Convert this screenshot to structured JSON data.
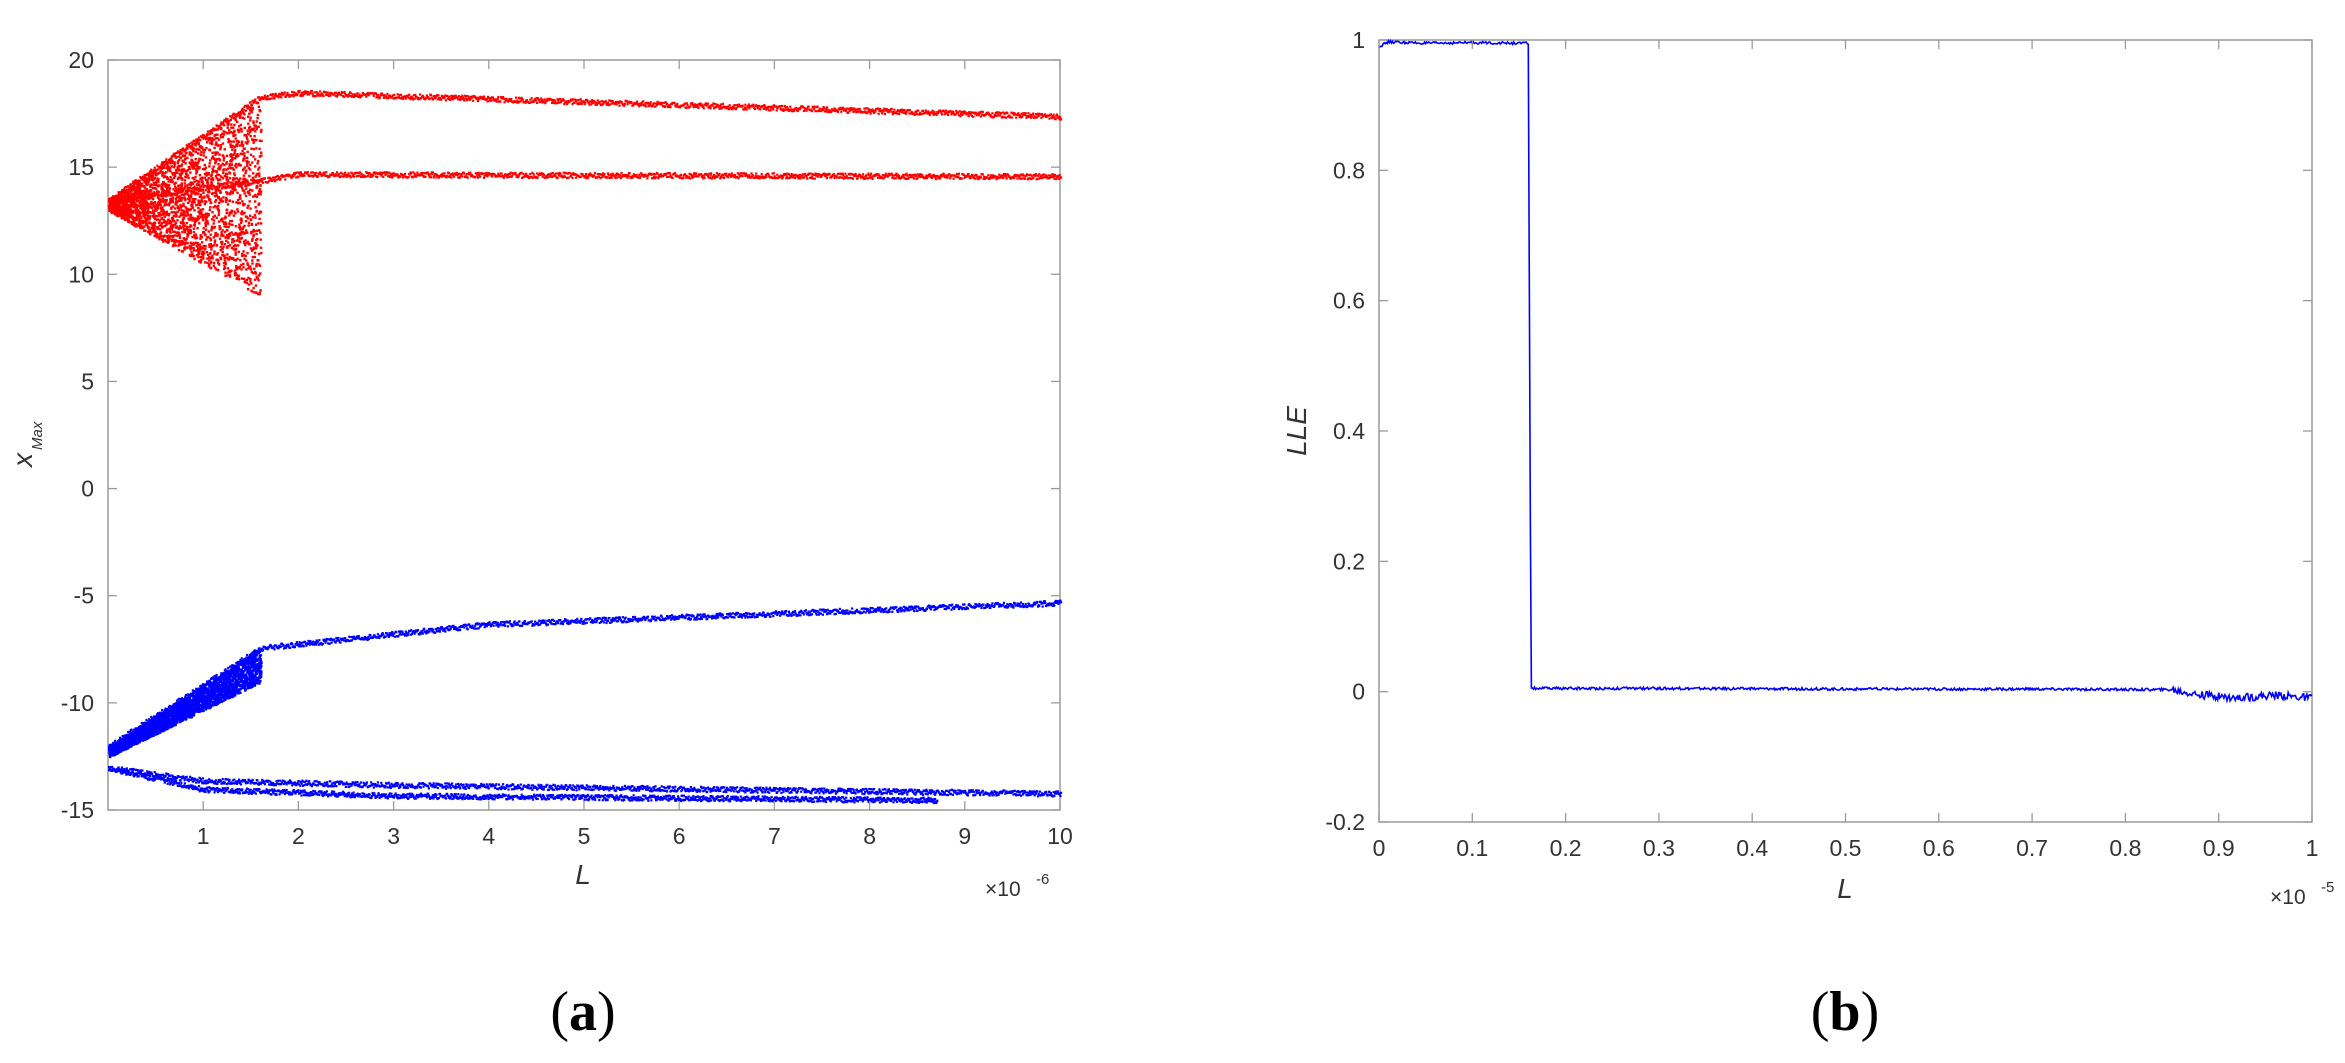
{
  "chart_data": [
    {
      "type": "scatter",
      "panel_label": {
        "open": "(",
        "letter": "a",
        "close": ")"
      },
      "xlabel": "L",
      "ylabel": "x",
      "ylabel_sub": "Max",
      "x_multiplier": {
        "base": "×10",
        "exp": "-6"
      },
      "xlim": [
        0,
        10
      ],
      "ylim": [
        -15,
        20
      ],
      "xticks": [
        "1",
        "2",
        "3",
        "4",
        "5",
        "6",
        "7",
        "8",
        "9",
        "10"
      ],
      "yticks": [
        "20",
        "15",
        "10",
        "5",
        "0",
        "-5",
        "-10",
        "-15"
      ],
      "grid": false,
      "legend": "none",
      "colors": {
        "series1": "#ff0000",
        "series2": "#0000ff"
      },
      "series": [
        {
          "color": "#ff0000",
          "chaotic_region": {
            "x_range": [
              0,
              1.6
            ],
            "upper": [
              13.5,
              18.3
            ],
            "lower": [
              13.0,
              9.0
            ]
          },
          "branches": [
            {
              "x": [
                0,
                1.6,
                2,
                10
              ],
              "y": [
                13.5,
                18.3,
                18.5,
                17.4
              ]
            },
            {
              "x": [
                0,
                1.6,
                2,
                10
              ],
              "y": [
                13.5,
                14.4,
                14.7,
                14.6
              ]
            }
          ]
        },
        {
          "color": "#0000ff",
          "chaotic_region": {
            "x_range": [
              0,
              1.6
            ],
            "upper": [
              -12.0,
              -7.4
            ],
            "lower": [
              -12.5,
              -9.0
            ]
          },
          "branches": [
            {
              "x": [
                0,
                1.6,
                4,
                10
              ],
              "y": [
                -12.0,
                -7.4,
                -6.3,
                -5.3
              ]
            },
            {
              "x": [
                0,
                1,
                3,
                10
              ],
              "y": [
                -13.0,
                -13.6,
                -13.8,
                -14.2
              ]
            },
            {
              "x": [
                0,
                1,
                3,
                8.7
              ],
              "y": [
                -13.0,
                -14.0,
                -14.3,
                -14.5
              ]
            }
          ]
        }
      ]
    },
    {
      "type": "line",
      "panel_label": {
        "open": "(",
        "letter": "b",
        "close": ")"
      },
      "xlabel": "L",
      "ylabel": "LLE",
      "x_multiplier": {
        "base": "×10",
        "exp": "-5"
      },
      "xlim": [
        0,
        1
      ],
      "ylim": [
        -0.2,
        1
      ],
      "xticks": [
        "0",
        "0.1",
        "0.2",
        "0.3",
        "0.4",
        "0.5",
        "0.6",
        "0.7",
        "0.8",
        "0.9",
        "1"
      ],
      "yticks": [
        "1",
        "0.8",
        "0.6",
        "0.4",
        "0.2",
        "0",
        "-0.2"
      ],
      "grid": false,
      "legend": "none",
      "colors": {
        "line": "#0000ff"
      },
      "series": [
        {
          "color": "#0000ff",
          "x": [
            0,
            0.01,
            0.05,
            0.1,
            0.155,
            0.16,
            0.163,
            0.17,
            0.3,
            0.5,
            0.7,
            0.85,
            0.88,
            0.92,
            0.96,
            1.0
          ],
          "y": [
            0.99,
            0.997,
            0.995,
            0.996,
            0.995,
            0.995,
            0.005,
            0.005,
            0.005,
            0.004,
            0.004,
            0.003,
            -0.005,
            -0.01,
            -0.005,
            -0.01
          ]
        }
      ]
    }
  ]
}
